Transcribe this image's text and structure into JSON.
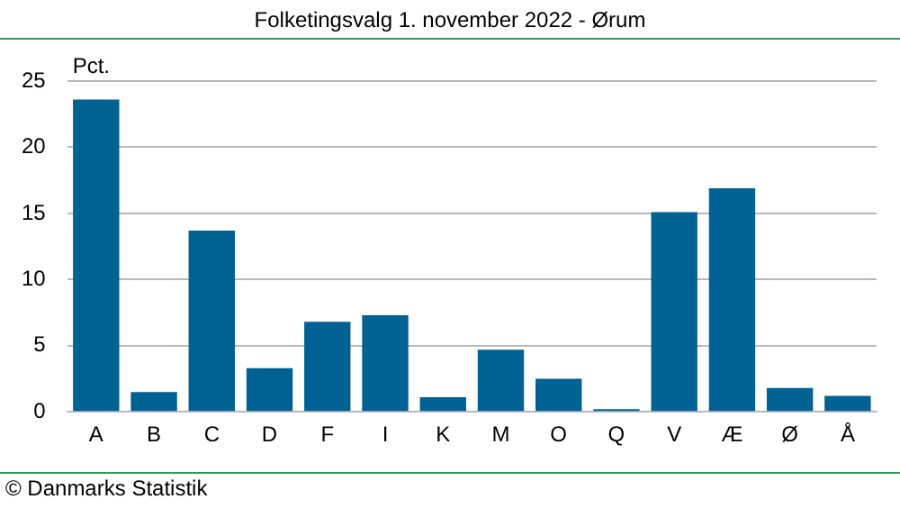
{
  "chart_data": {
    "type": "bar",
    "title": "Folketingsvalg 1. november 2022 - Ørum",
    "ylabel": "Pct.",
    "categories": [
      "A",
      "B",
      "C",
      "D",
      "F",
      "I",
      "K",
      "M",
      "O",
      "Q",
      "V",
      "Æ",
      "Ø",
      "Å"
    ],
    "values": [
      23.6,
      1.5,
      13.7,
      3.3,
      6.8,
      7.3,
      1.1,
      4.7,
      2.5,
      0.2,
      15.1,
      16.9,
      1.8,
      1.2
    ],
    "color": "#006292",
    "ylim": [
      0,
      25
    ],
    "yticks": [
      0,
      5,
      10,
      15,
      20,
      25
    ],
    "grid": "y",
    "annotations": [
      "© Danmarks Statistik"
    ]
  }
}
